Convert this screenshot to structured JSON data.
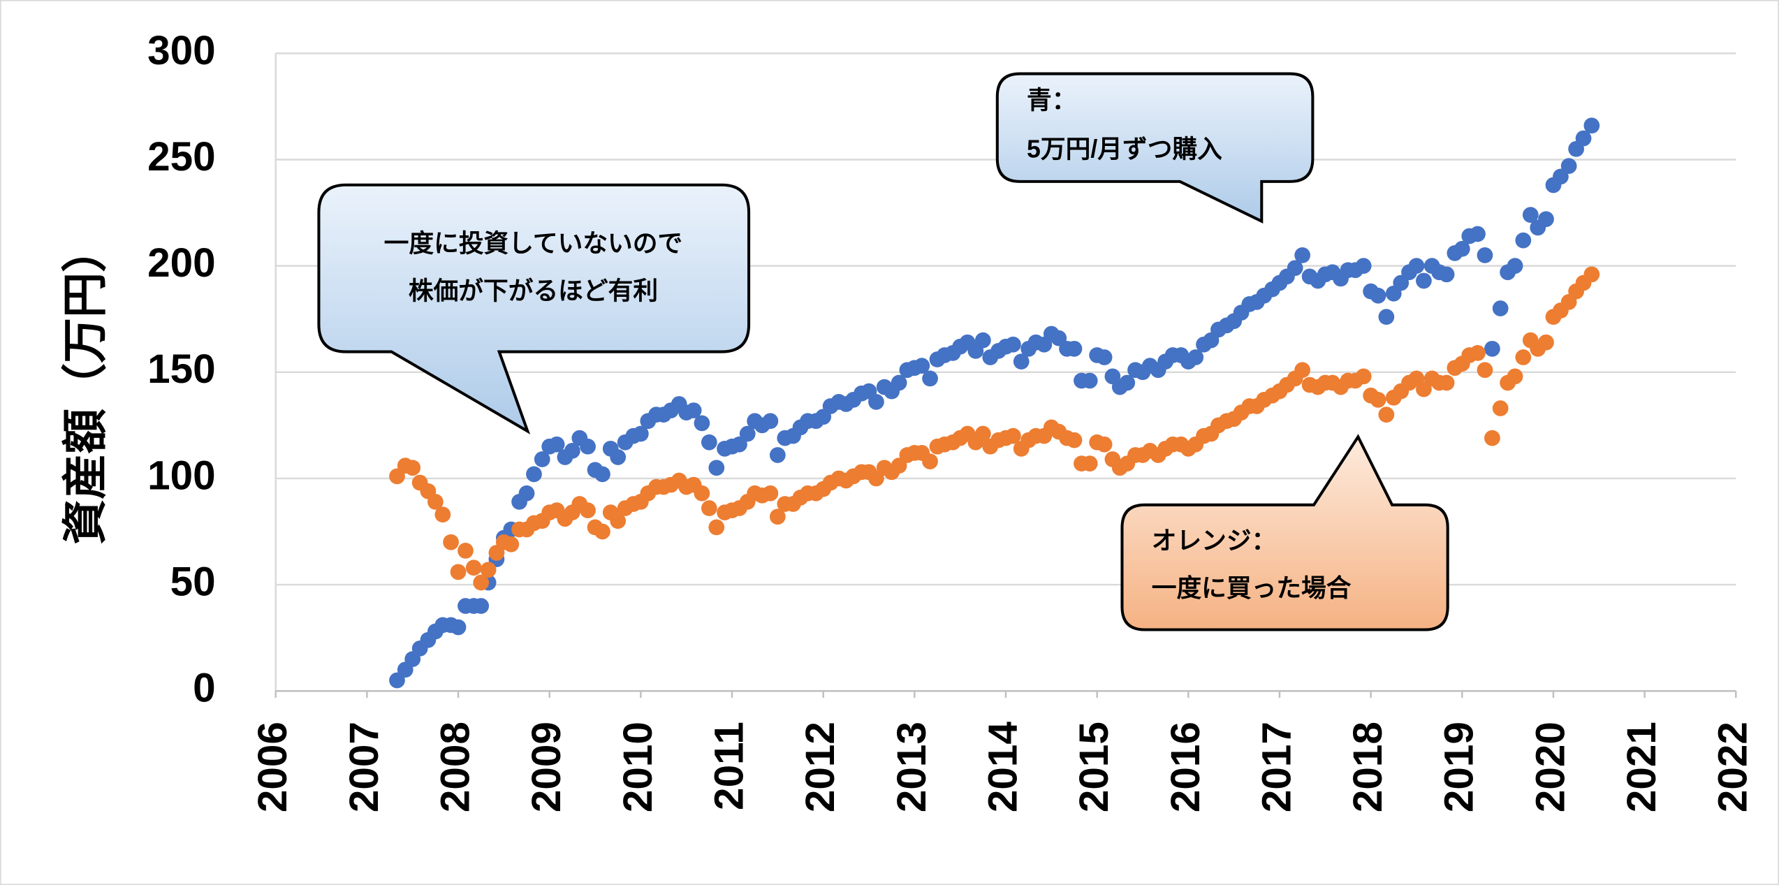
{
  "chart_data": {
    "type": "scatter",
    "y_label": "資産額（万円）",
    "annotations": [
      {
        "lines": [
          "一度に投資していないので",
          "株価が下がるほど有利"
        ]
      },
      {
        "lines": [
          "青：",
          "5万円/月ずつ購入"
        ]
      },
      {
        "lines": [
          "オレンジ：",
          "一度に買った場合"
        ]
      }
    ],
    "xlim": [
      2006,
      2022
    ],
    "xticks": [
      2006,
      2007,
      2008,
      2009,
      2010,
      2011,
      2012,
      2013,
      2014,
      2015,
      2016,
      2017,
      2018,
      2019,
      2020,
      2021,
      2022
    ],
    "ylim": [
      0,
      300
    ],
    "yticks": [
      0,
      50,
      100,
      150,
      200,
      250,
      300
    ],
    "grid": true,
    "x": [
      2007.33,
      2007.42,
      2007.5,
      2007.58,
      2007.67,
      2007.75,
      2007.83,
      2007.92,
      2008,
      2008.08,
      2008.17,
      2008.25,
      2008.33,
      2008.42,
      2008.5,
      2008.58,
      2008.67,
      2008.75,
      2008.83,
      2008.92,
      2009,
      2009.08,
      2009.17,
      2009.25,
      2009.33,
      2009.42,
      2009.5,
      2009.58,
      2009.67,
      2009.75,
      2009.83,
      2009.92,
      2010,
      2010.08,
      2010.17,
      2010.25,
      2010.33,
      2010.42,
      2010.5,
      2010.58,
      2010.67,
      2010.75,
      2010.83,
      2010.92,
      2011,
      2011.08,
      2011.17,
      2011.25,
      2011.33,
      2011.42,
      2011.5,
      2011.58,
      2011.67,
      2011.75,
      2011.83,
      2011.92,
      2012,
      2012.08,
      2012.17,
      2012.25,
      2012.33,
      2012.42,
      2012.5,
      2012.58,
      2012.67,
      2012.75,
      2012.83,
      2012.92,
      2013,
      2013.08,
      2013.17,
      2013.25,
      2013.33,
      2013.42,
      2013.5,
      2013.58,
      2013.67,
      2013.75,
      2013.83,
      2013.92,
      2014,
      2014.08,
      2014.17,
      2014.25,
      2014.33,
      2014.42,
      2014.5,
      2014.58,
      2014.67,
      2014.75,
      2014.83,
      2014.92,
      2015,
      2015.08,
      2015.17,
      2015.25,
      2015.33,
      2015.42,
      2015.5,
      2015.58,
      2015.67,
      2015.75,
      2015.83,
      2015.92,
      2016,
      2016.08,
      2016.17,
      2016.25,
      2016.33,
      2016.42,
      2016.5,
      2016.58,
      2016.67,
      2016.75,
      2016.83,
      2016.92,
      2017,
      2017.08,
      2017.17,
      2017.25,
      2017.33,
      2017.42,
      2017.5,
      2017.58,
      2017.67,
      2017.75,
      2017.83,
      2017.92,
      2018,
      2018.08,
      2018.17,
      2018.25,
      2018.33,
      2018.42,
      2018.5,
      2018.58,
      2018.67,
      2018.75,
      2018.83,
      2018.92,
      2019,
      2019.08,
      2019.17,
      2019.25,
      2019.33,
      2019.42,
      2019.5,
      2019.58,
      2019.67,
      2019.75,
      2019.83,
      2019.92,
      2020,
      2020.08,
      2020.17,
      2020.25,
      2020.33,
      2020.42
    ],
    "series": [
      {
        "color": "#4472c4",
        "values": [
          5,
          10,
          15,
          20,
          24,
          28,
          31,
          31,
          30,
          40,
          40,
          40,
          51,
          62,
          72,
          76,
          89,
          93,
          102,
          109,
          115,
          116,
          110,
          113,
          119,
          115,
          104,
          102,
          114,
          110,
          117,
          120,
          121,
          127,
          130,
          130,
          132,
          135,
          131,
          132,
          126,
          117,
          105,
          114,
          115,
          116,
          121,
          127,
          125,
          127,
          111,
          119,
          120,
          124,
          127,
          127,
          129,
          134,
          136,
          135,
          137,
          140,
          141,
          136,
          143,
          141,
          145,
          151,
          152,
          153,
          147,
          156,
          158,
          159,
          162,
          164,
          160,
          165,
          157,
          160,
          162,
          163,
          155,
          161,
          164,
          163,
          168,
          166,
          161,
          161,
          146,
          146,
          158,
          157,
          148,
          143,
          145,
          151,
          150,
          153,
          151,
          155,
          158,
          158,
          155,
          157,
          163,
          165,
          170,
          172,
          174,
          178,
          182,
          183,
          186,
          189,
          192,
          195,
          199,
          205,
          195,
          193,
          196,
          197,
          194,
          198,
          198,
          200,
          188,
          186,
          176,
          187,
          192,
          197,
          200,
          193,
          200,
          197,
          196,
          206,
          208,
          214,
          215,
          205,
          161,
          180,
          197,
          200,
          212,
          224,
          218,
          222,
          238,
          242,
          247,
          255,
          260,
          266
        ]
      },
      {
        "color": "#ed7d31",
        "values": [
          101,
          106,
          105,
          98,
          94,
          89,
          83,
          70,
          56,
          66,
          58,
          51,
          57,
          65,
          70,
          69,
          76,
          76,
          79,
          80,
          84,
          85,
          81,
          84,
          88,
          85,
          77,
          75,
          84,
          80,
          86,
          88,
          89,
          93,
          96,
          96,
          97,
          99,
          96,
          97,
          93,
          86,
          77,
          84,
          85,
          86,
          89,
          93,
          92,
          93,
          82,
          88,
          88,
          91,
          93,
          93,
          95,
          98,
          100,
          99,
          101,
          103,
          103,
          100,
          105,
          103,
          106,
          111,
          112,
          112,
          108,
          115,
          116,
          117,
          119,
          121,
          117,
          121,
          115,
          118,
          119,
          120,
          114,
          118,
          120,
          120,
          124,
          122,
          119,
          118,
          107,
          107,
          117,
          116,
          109,
          105,
          107,
          111,
          111,
          113,
          111,
          114,
          116,
          116,
          114,
          116,
          120,
          121,
          125,
          127,
          128,
          131,
          134,
          134,
          137,
          139,
          141,
          144,
          147,
          151,
          144,
          143,
          145,
          145,
          143,
          146,
          146,
          148,
          139,
          137,
          130,
          138,
          141,
          145,
          147,
          142,
          147,
          145,
          145,
          152,
          154,
          158,
          159,
          151,
          119,
          133,
          145,
          148,
          157,
          165,
          161,
          164,
          176,
          179,
          183,
          188,
          192,
          196
        ]
      }
    ]
  }
}
